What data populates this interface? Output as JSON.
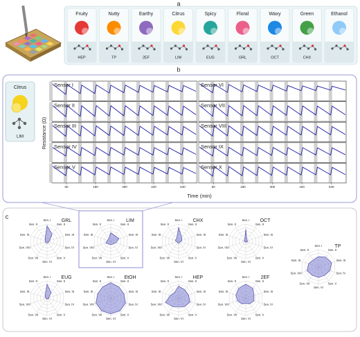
{
  "panel_a": {
    "label": "a",
    "odors": [
      {
        "name": "Fruity",
        "code": "HEP"
      },
      {
        "name": "Nutty",
        "code": "TP"
      },
      {
        "name": "Earthy",
        "code": "2EF"
      },
      {
        "name": "Citrus",
        "code": "LIM"
      },
      {
        "name": "Spicy",
        "code": "EUG"
      },
      {
        "name": "Floral",
        "code": "GRL"
      },
      {
        "name": "Waxy",
        "code": "OCT"
      },
      {
        "name": "Green",
        "code": "CHX"
      },
      {
        "name": "Ethanol"
      }
    ]
  },
  "panel_b": {
    "label": "b",
    "inset": {
      "name": "Citrus",
      "code": "LIM"
    },
    "chart_data": {
      "type": "line",
      "ylabel": "Resistance (Ω)",
      "xlabel": "Time (min)",
      "xlim": [
        0,
        600
      ],
      "xticks": [
        60,
        180,
        300,
        420,
        540
      ],
      "ylim": [
        0,
        1
      ],
      "x": [
        3,
        57,
        63,
        117,
        123,
        177,
        183,
        237,
        243,
        297,
        303,
        357,
        363,
        417,
        423,
        477,
        483,
        537,
        543,
        597
      ],
      "series": [
        {
          "name": "Sensor I",
          "color": "#1c1ca8",
          "values": [
            0.9,
            0.3,
            0.88,
            0.35,
            0.85,
            0.35,
            0.86,
            0.38,
            0.84,
            0.4,
            0.85,
            0.42,
            0.83,
            0.43,
            0.82,
            0.45,
            0.83,
            0.46,
            0.82,
            0.47
          ]
        },
        {
          "name": "Sensor II",
          "color": "#1c1ca8",
          "values": [
            0.85,
            0.2,
            0.85,
            0.22,
            0.84,
            0.22,
            0.85,
            0.24,
            0.84,
            0.25,
            0.84,
            0.26,
            0.83,
            0.27,
            0.83,
            0.28,
            0.82,
            0.28,
            0.82,
            0.29
          ]
        },
        {
          "name": "Sensor III",
          "color": "#1c1ca8",
          "values": [
            0.88,
            0.25,
            0.87,
            0.27,
            0.86,
            0.28,
            0.86,
            0.3,
            0.85,
            0.3,
            0.85,
            0.31,
            0.84,
            0.32,
            0.84,
            0.33,
            0.83,
            0.33,
            0.83,
            0.34
          ]
        },
        {
          "name": "Sensor IV",
          "color": "#1c1ca8",
          "values": [
            0.8,
            0.3,
            0.82,
            0.32,
            0.8,
            0.33,
            0.81,
            0.34,
            0.8,
            0.35,
            0.8,
            0.35,
            0.79,
            0.36,
            0.79,
            0.37,
            0.78,
            0.37,
            0.78,
            0.38
          ]
        },
        {
          "name": "Sensor V",
          "color": "#1c1ca8",
          "values": [
            0.9,
            0.35,
            0.88,
            0.38,
            0.87,
            0.4,
            0.86,
            0.41,
            0.86,
            0.42,
            0.85,
            0.43,
            0.85,
            0.44,
            0.84,
            0.45,
            0.84,
            0.45,
            0.83,
            0.46
          ]
        },
        {
          "name": "Sensor VI",
          "color": "#1c1ca8",
          "values": [
            0.92,
            0.4,
            0.9,
            0.42,
            0.88,
            0.45,
            0.86,
            0.47,
            0.85,
            0.5,
            0.84,
            0.5,
            0.82,
            0.52,
            0.8,
            0.53,
            0.79,
            0.55,
            0.78,
            0.56
          ]
        },
        {
          "name": "Sensor VII",
          "color": "#1c1ca8",
          "values": [
            0.86,
            0.22,
            0.86,
            0.24,
            0.85,
            0.25,
            0.85,
            0.26,
            0.84,
            0.27,
            0.84,
            0.28,
            0.83,
            0.29,
            0.83,
            0.3,
            0.82,
            0.3,
            0.82,
            0.31
          ]
        },
        {
          "name": "Sensor VIII",
          "color": "#1c1ca8",
          "values": [
            0.87,
            0.26,
            0.86,
            0.28,
            0.86,
            0.29,
            0.85,
            0.3,
            0.85,
            0.31,
            0.84,
            0.32,
            0.84,
            0.33,
            0.83,
            0.33,
            0.83,
            0.34,
            0.82,
            0.35
          ]
        },
        {
          "name": "Sensor IX",
          "color": "#1c1ca8",
          "values": [
            0.82,
            0.3,
            0.82,
            0.31,
            0.81,
            0.32,
            0.81,
            0.33,
            0.8,
            0.34,
            0.8,
            0.35,
            0.79,
            0.35,
            0.79,
            0.36,
            0.78,
            0.36,
            0.78,
            0.37
          ]
        },
        {
          "name": "Sensor X",
          "color": "#1c1ca8",
          "values": [
            0.9,
            0.32,
            0.89,
            0.34,
            0.88,
            0.35,
            0.87,
            0.36,
            0.87,
            0.37,
            0.86,
            0.38,
            0.86,
            0.39,
            0.85,
            0.4,
            0.85,
            0.4,
            0.84,
            0.41
          ]
        }
      ]
    }
  },
  "panel_c": {
    "label": "c",
    "axes": [
      "Sen. I",
      "Sen. II",
      "Sen. III",
      "Sen. IV",
      "Sen. V",
      "Sen. VI",
      "Sen. VII",
      "Sen. VIII",
      "Sen. IX",
      "Sen. X"
    ],
    "chart_data": [
      {
        "type": "radar",
        "title": "GRL",
        "rlim": [
          0,
          1
        ],
        "rticks": [
          0.2,
          0.4,
          0.6,
          0.8,
          1
        ],
        "color": "#7474d0",
        "values": [
          0.9,
          0.5,
          0.15,
          0.1,
          0.1,
          0.1,
          0.1,
          0.1,
          0.1,
          0.2
        ]
      },
      {
        "type": "radar",
        "title": "LIM",
        "rlim": [
          0,
          1
        ],
        "rticks": [
          0.2,
          0.4,
          0.6,
          0.8,
          1
        ],
        "color": "#7474d0",
        "values": [
          0.5,
          0.4,
          0.5,
          0.3,
          0.2,
          0.2,
          0.2,
          0.3,
          0.2,
          0.2
        ]
      },
      {
        "type": "radar",
        "title": "CHX",
        "rlim": [
          0,
          1
        ],
        "rticks": [
          0.2,
          0.4,
          0.6,
          0.8,
          1
        ],
        "color": "#7474d0",
        "values": [
          0.8,
          0.3,
          0.2,
          0.1,
          0.1,
          0.1,
          0.1,
          0.1,
          0.2,
          0.2
        ]
      },
      {
        "type": "radar",
        "title": "OCT",
        "rlim": [
          0,
          1
        ],
        "rticks": [
          0.2,
          0.4,
          0.6,
          0.8,
          1
        ],
        "color": "#7474d0",
        "values": [
          0.7,
          0.1,
          0.1,
          0.1,
          0.05,
          0.05,
          0.05,
          0.05,
          0.1,
          0.1
        ]
      },
      {
        "type": "radar",
        "title": "TP",
        "rlim": [
          0,
          1
        ],
        "rticks": [
          0.2,
          0.4,
          0.6,
          0.8,
          1
        ],
        "color": "#7474d0",
        "values": [
          0.6,
          0.7,
          0.8,
          0.7,
          0.6,
          0.6,
          0.6,
          0.7,
          0.6,
          0.5
        ]
      },
      {
        "type": "radar",
        "title": "EUG",
        "rlim": [
          0,
          1
        ],
        "rticks": [
          0.2,
          0.4,
          0.6,
          0.8,
          1
        ],
        "color": "#7474d0",
        "values": [
          0.8,
          0.4,
          0.1,
          0.1,
          0.05,
          0.05,
          0.05,
          0.05,
          0.1,
          0.2
        ]
      },
      {
        "type": "radar",
        "title": "EtOH",
        "rlim": [
          0,
          1
        ],
        "rticks": [
          0.2,
          0.4,
          0.6,
          0.8,
          1
        ],
        "color": "#7474d0",
        "values": [
          0.9,
          0.8,
          0.8,
          0.9,
          0.9,
          0.9,
          0.9,
          0.9,
          0.8,
          0.8
        ]
      },
      {
        "type": "radar",
        "title": "HEP",
        "rlim": [
          0,
          1
        ],
        "rticks": [
          0.2,
          0.4,
          0.6,
          0.8,
          1
        ],
        "color": "#7474d0",
        "values": [
          0.7,
          0.6,
          0.6,
          0.7,
          0.6,
          0.5,
          0.6,
          0.8,
          0.5,
          0.4
        ]
      },
      {
        "type": "radar",
        "title": "2EF",
        "rlim": [
          0,
          1
        ],
        "rticks": [
          0.2,
          0.4,
          0.6,
          0.8,
          1
        ],
        "color": "#7474d0",
        "values": [
          0.8,
          0.7,
          0.5,
          0.5,
          0.4,
          0.3,
          0.4,
          0.5,
          0.6,
          0.7
        ]
      }
    ]
  }
}
